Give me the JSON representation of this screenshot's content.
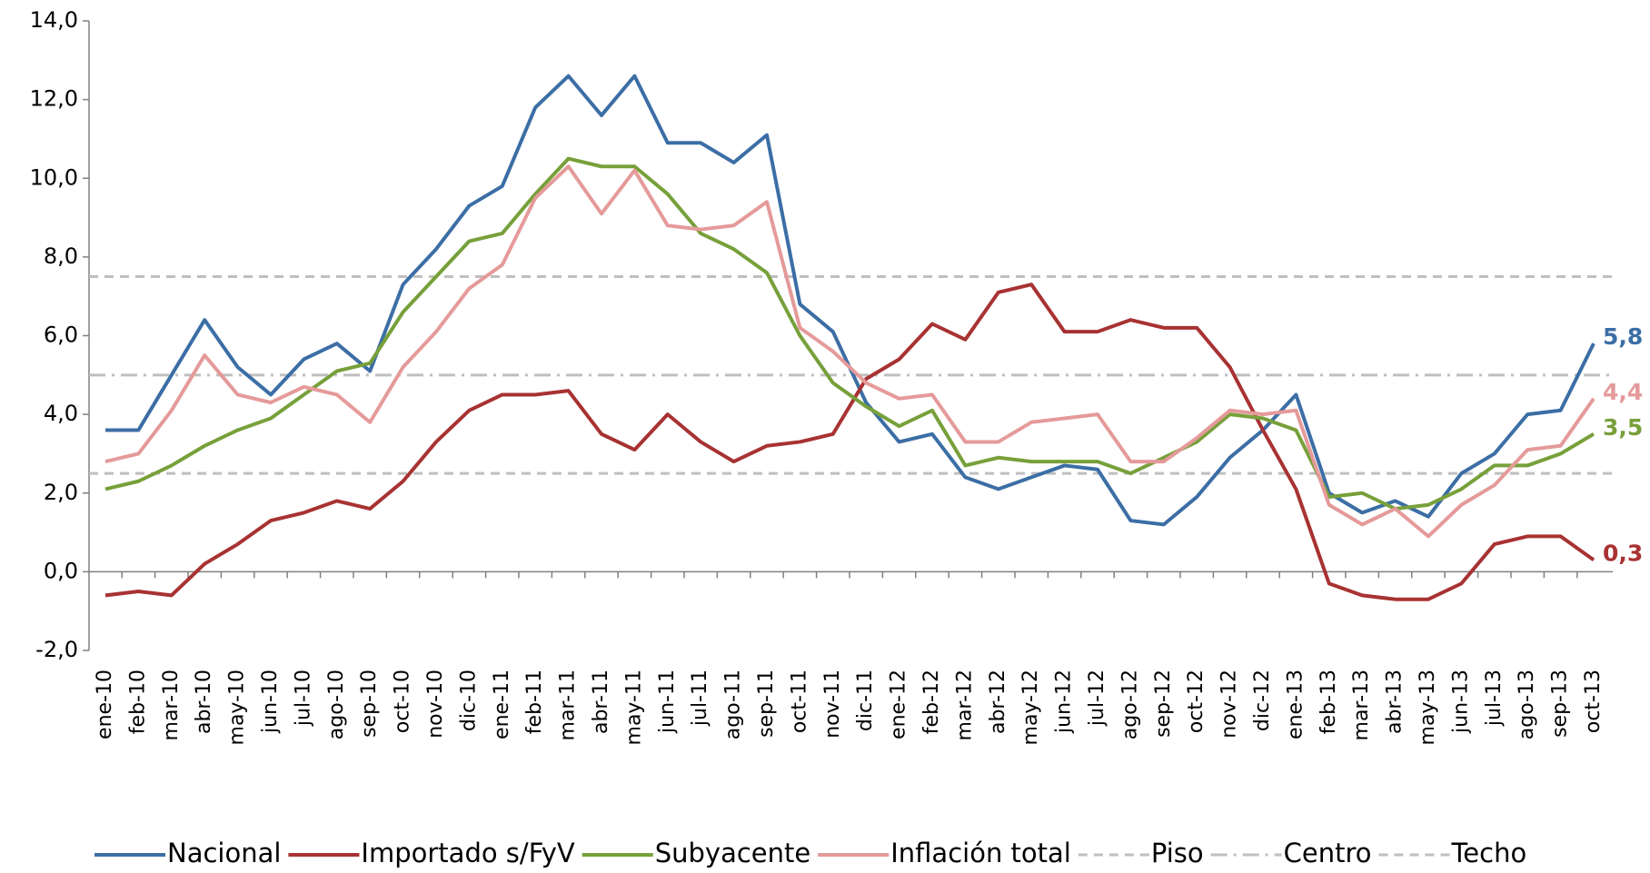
{
  "chart_data": {
    "type": "line",
    "categories": [
      "ene-10",
      "feb-10",
      "mar-10",
      "abr-10",
      "may-10",
      "jun-10",
      "jul-10",
      "ago-10",
      "sep-10",
      "oct-10",
      "nov-10",
      "dic-10",
      "ene-11",
      "feb-11",
      "mar-11",
      "abr-11",
      "may-11",
      "jun-11",
      "jul-11",
      "ago-11",
      "sep-11",
      "oct-11",
      "nov-11",
      "dic-11",
      "ene-12",
      "feb-12",
      "mar-12",
      "abr-12",
      "may-12",
      "jun-12",
      "jul-12",
      "ago-12",
      "sep-12",
      "oct-12",
      "nov-12",
      "dic-12",
      "ene-13",
      "feb-13",
      "mar-13",
      "abr-13",
      "may-13",
      "jun-13",
      "jul-13",
      "ago-13",
      "sep-13",
      "oct-13"
    ],
    "series": [
      {
        "name": "Nacional",
        "color": "#3c6ea5",
        "end_label": "5,8",
        "values": [
          3.6,
          3.6,
          5.0,
          6.4,
          5.2,
          4.5,
          5.4,
          5.8,
          5.1,
          7.3,
          8.2,
          9.3,
          9.8,
          11.8,
          12.6,
          11.6,
          12.6,
          10.9,
          10.9,
          10.4,
          11.1,
          6.8,
          6.1,
          4.3,
          3.3,
          3.5,
          2.4,
          2.1,
          2.4,
          2.7,
          2.6,
          1.3,
          1.2,
          1.9,
          2.9,
          3.6,
          4.5,
          2.0,
          1.5,
          1.8,
          1.4,
          2.5,
          3.0,
          4.0,
          4.1,
          5.8
        ]
      },
      {
        "name": "Importado s/FyV",
        "color": "#a83232",
        "end_label": "0,3",
        "values": [
          -0.6,
          -0.5,
          -0.6,
          0.2,
          0.7,
          1.3,
          1.5,
          1.8,
          1.6,
          2.3,
          3.3,
          4.1,
          4.5,
          4.5,
          4.6,
          3.5,
          3.1,
          4.0,
          3.3,
          2.8,
          3.2,
          3.3,
          3.5,
          4.9,
          5.4,
          6.3,
          5.9,
          7.1,
          7.3,
          6.1,
          6.1,
          6.4,
          6.2,
          6.2,
          5.2,
          3.6,
          2.1,
          -0.3,
          -0.6,
          -0.7,
          -0.7,
          -0.3,
          0.7,
          0.9,
          0.9,
          0.3
        ]
      },
      {
        "name": "Subyacente",
        "color": "#77a03a",
        "end_label": "3,5",
        "values": [
          2.1,
          2.3,
          2.7,
          3.2,
          3.6,
          3.9,
          4.5,
          5.1,
          5.3,
          6.6,
          7.5,
          8.4,
          8.6,
          9.6,
          10.5,
          10.3,
          10.3,
          9.6,
          8.6,
          8.2,
          7.6,
          6.0,
          4.8,
          4.2,
          3.7,
          4.1,
          2.7,
          2.9,
          2.8,
          2.8,
          2.8,
          2.5,
          2.9,
          3.3,
          4.0,
          3.9,
          3.6,
          1.9,
          2.0,
          1.6,
          1.7,
          2.1,
          2.7,
          2.7,
          3.0,
          3.5
        ]
      },
      {
        "name": "Inflación total",
        "color": "#e59a9a",
        "end_label": "4,4",
        "values": [
          2.8,
          3.0,
          4.1,
          5.5,
          4.5,
          4.3,
          4.7,
          4.5,
          3.8,
          5.2,
          6.1,
          7.2,
          7.8,
          9.5,
          10.3,
          9.1,
          10.2,
          8.8,
          8.7,
          8.8,
          9.4,
          6.2,
          5.6,
          4.8,
          4.4,
          4.5,
          3.3,
          3.3,
          3.8,
          3.9,
          4.0,
          2.8,
          2.8,
          3.4,
          4.1,
          4.0,
          4.1,
          1.7,
          1.2,
          1.6,
          0.9,
          1.7,
          2.2,
          3.1,
          3.2,
          4.4
        ]
      }
    ],
    "reference_lines": [
      {
        "name": "Piso",
        "value": 2.5,
        "color": "#bfbfbf",
        "style": "dashed"
      },
      {
        "name": "Centro",
        "value": 5.0,
        "color": "#bfbfbf",
        "style": "dashdot"
      },
      {
        "name": "Techo",
        "value": 7.5,
        "color": "#bfbfbf",
        "style": "dashed"
      }
    ],
    "ylim": [
      -2,
      14
    ],
    "yticks": [
      {
        "value": -2,
        "label": "-2,0"
      },
      {
        "value": 0,
        "label": "0,0"
      },
      {
        "value": 2,
        "label": "2,0"
      },
      {
        "value": 4,
        "label": "4,0"
      },
      {
        "value": 6,
        "label": "6,0"
      },
      {
        "value": 8,
        "label": "8,0"
      },
      {
        "value": 10,
        "label": "10,0"
      },
      {
        "value": 12,
        "label": "12,0"
      },
      {
        "value": 14,
        "label": "14,0"
      }
    ],
    "legend": "bottom"
  }
}
